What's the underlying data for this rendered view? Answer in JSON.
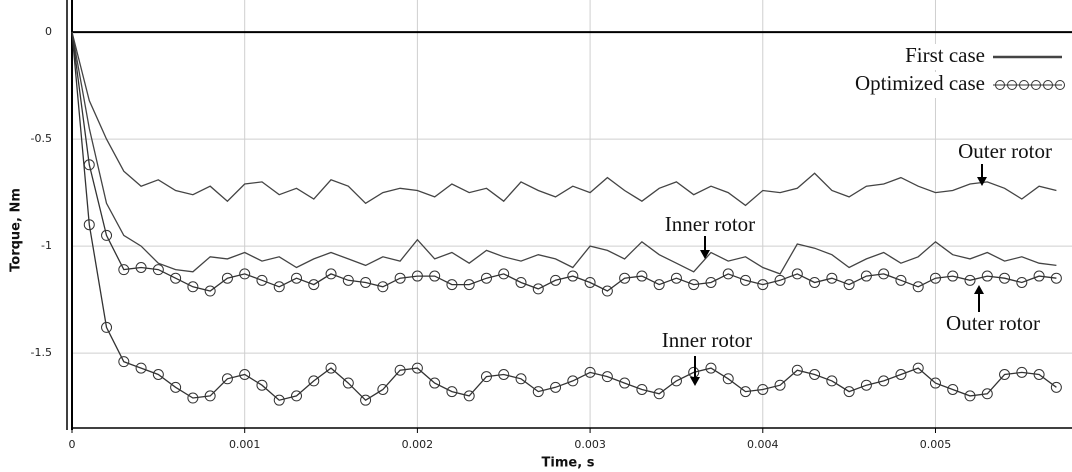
{
  "chart_data": {
    "type": "line",
    "xlabel": "Time, s",
    "ylabel": "Torque, Nm",
    "xlim": [
      0,
      0.00575
    ],
    "ylim": [
      -1.85,
      0.15
    ],
    "xticks": [
      0,
      0.001,
      0.002,
      0.003,
      0.004,
      0.005
    ],
    "yticks": [
      0,
      -0.5,
      -1,
      -1.5
    ],
    "grid": true,
    "legend": "upper right",
    "x": [
      0,
      0.0001,
      0.0002,
      0.0003,
      0.0004,
      0.0005,
      0.0006,
      0.0007,
      0.0008,
      0.0009,
      0.001,
      0.0011,
      0.0012,
      0.0013,
      0.0014,
      0.0015,
      0.0016,
      0.0017,
      0.0018,
      0.0019,
      0.002,
      0.0021,
      0.0022,
      0.0023,
      0.0024,
      0.0025,
      0.0026,
      0.0027,
      0.0028,
      0.0029,
      0.003,
      0.0031,
      0.0032,
      0.0033,
      0.0034,
      0.0035,
      0.0036,
      0.0037,
      0.0038,
      0.0039,
      0.004,
      0.0041,
      0.0042,
      0.0043,
      0.0044,
      0.0045,
      0.0046,
      0.0047,
      0.0048,
      0.0049,
      0.005,
      0.0051,
      0.0052,
      0.0053,
      0.0054,
      0.0055,
      0.0056,
      0.0057
    ],
    "series": [
      {
        "name": "First case",
        "color": "#444444",
        "marker": "none",
        "curves": [
          {
            "values": [
              0,
              -0.32,
              -0.5,
              -0.65,
              -0.72,
              -0.69,
              -0.74,
              -0.76,
              -0.72,
              -0.79,
              -0.71,
              -0.7,
              -0.76,
              -0.73,
              -0.78,
              -0.69,
              -0.72,
              -0.8,
              -0.75,
              -0.73,
              -0.74,
              -0.77,
              -0.71,
              -0.75,
              -0.73,
              -0.79,
              -0.7,
              -0.74,
              -0.77,
              -0.72,
              -0.75,
              -0.68,
              -0.74,
              -0.79,
              -0.73,
              -0.7,
              -0.76,
              -0.72,
              -0.75,
              -0.81,
              -0.74,
              -0.75,
              -0.73,
              -0.66,
              -0.74,
              -0.77,
              -0.72,
              -0.71,
              -0.68,
              -0.72,
              -0.75,
              -0.74,
              -0.71,
              -0.7,
              -0.73,
              -0.78,
              -0.72,
              -0.74
            ]
          },
          {
            "values": [
              0,
              -0.45,
              -0.8,
              -0.95,
              -1.0,
              -1.08,
              -1.11,
              -1.12,
              -1.05,
              -1.06,
              -1.03,
              -1.07,
              -1.05,
              -1.1,
              -1.06,
              -1.03,
              -1.06,
              -1.09,
              -1.05,
              -1.07,
              -0.97,
              -1.06,
              -1.03,
              -1.08,
              -1.02,
              -1.05,
              -1.07,
              -1.04,
              -1.06,
              -1.1,
              -1.0,
              -1.02,
              -1.06,
              -0.98,
              -1.04,
              -1.08,
              -1.12,
              -1.03,
              -1.07,
              -1.05,
              -1.1,
              -1.13,
              -0.99,
              -1.01,
              -1.04,
              -1.1,
              -1.06,
              -1.03,
              -1.08,
              -1.05,
              -0.98,
              -1.04,
              -1.06,
              -1.03,
              -1.07,
              -1.05,
              -1.08,
              -1.09
            ]
          }
        ]
      },
      {
        "name": "Optimized case",
        "color": "#333333",
        "marker": "circle",
        "curves": [
          {
            "values": [
              0,
              -0.62,
              -0.95,
              -1.11,
              -1.1,
              -1.11,
              -1.15,
              -1.19,
              -1.21,
              -1.15,
              -1.13,
              -1.16,
              -1.19,
              -1.15,
              -1.18,
              -1.13,
              -1.16,
              -1.17,
              -1.19,
              -1.15,
              -1.14,
              -1.14,
              -1.18,
              -1.18,
              -1.15,
              -1.13,
              -1.17,
              -1.2,
              -1.16,
              -1.14,
              -1.17,
              -1.21,
              -1.15,
              -1.14,
              -1.18,
              -1.15,
              -1.18,
              -1.17,
              -1.13,
              -1.16,
              -1.18,
              -1.16,
              -1.13,
              -1.17,
              -1.15,
              -1.18,
              -1.14,
              -1.13,
              -1.16,
              -1.19,
              -1.15,
              -1.14,
              -1.16,
              -1.14,
              -1.15,
              -1.17,
              -1.14,
              -1.15
            ]
          },
          {
            "values": [
              0,
              -0.9,
              -1.38,
              -1.54,
              -1.57,
              -1.6,
              -1.66,
              -1.71,
              -1.7,
              -1.62,
              -1.6,
              -1.65,
              -1.72,
              -1.7,
              -1.63,
              -1.57,
              -1.64,
              -1.72,
              -1.67,
              -1.58,
              -1.57,
              -1.64,
              -1.68,
              -1.7,
              -1.61,
              -1.6,
              -1.62,
              -1.68,
              -1.66,
              -1.63,
              -1.59,
              -1.61,
              -1.64,
              -1.67,
              -1.69,
              -1.63,
              -1.59,
              -1.57,
              -1.62,
              -1.68,
              -1.67,
              -1.65,
              -1.58,
              -1.6,
              -1.63,
              -1.68,
              -1.65,
              -1.63,
              -1.6,
              -1.57,
              -1.64,
              -1.67,
              -1.7,
              -1.69,
              -1.6,
              -1.59,
              -1.6,
              -1.66
            ]
          }
        ]
      }
    ],
    "annotations": [
      "Outer rotor",
      "Inner rotor",
      "Outer rotor",
      "Inner rotor"
    ]
  }
}
